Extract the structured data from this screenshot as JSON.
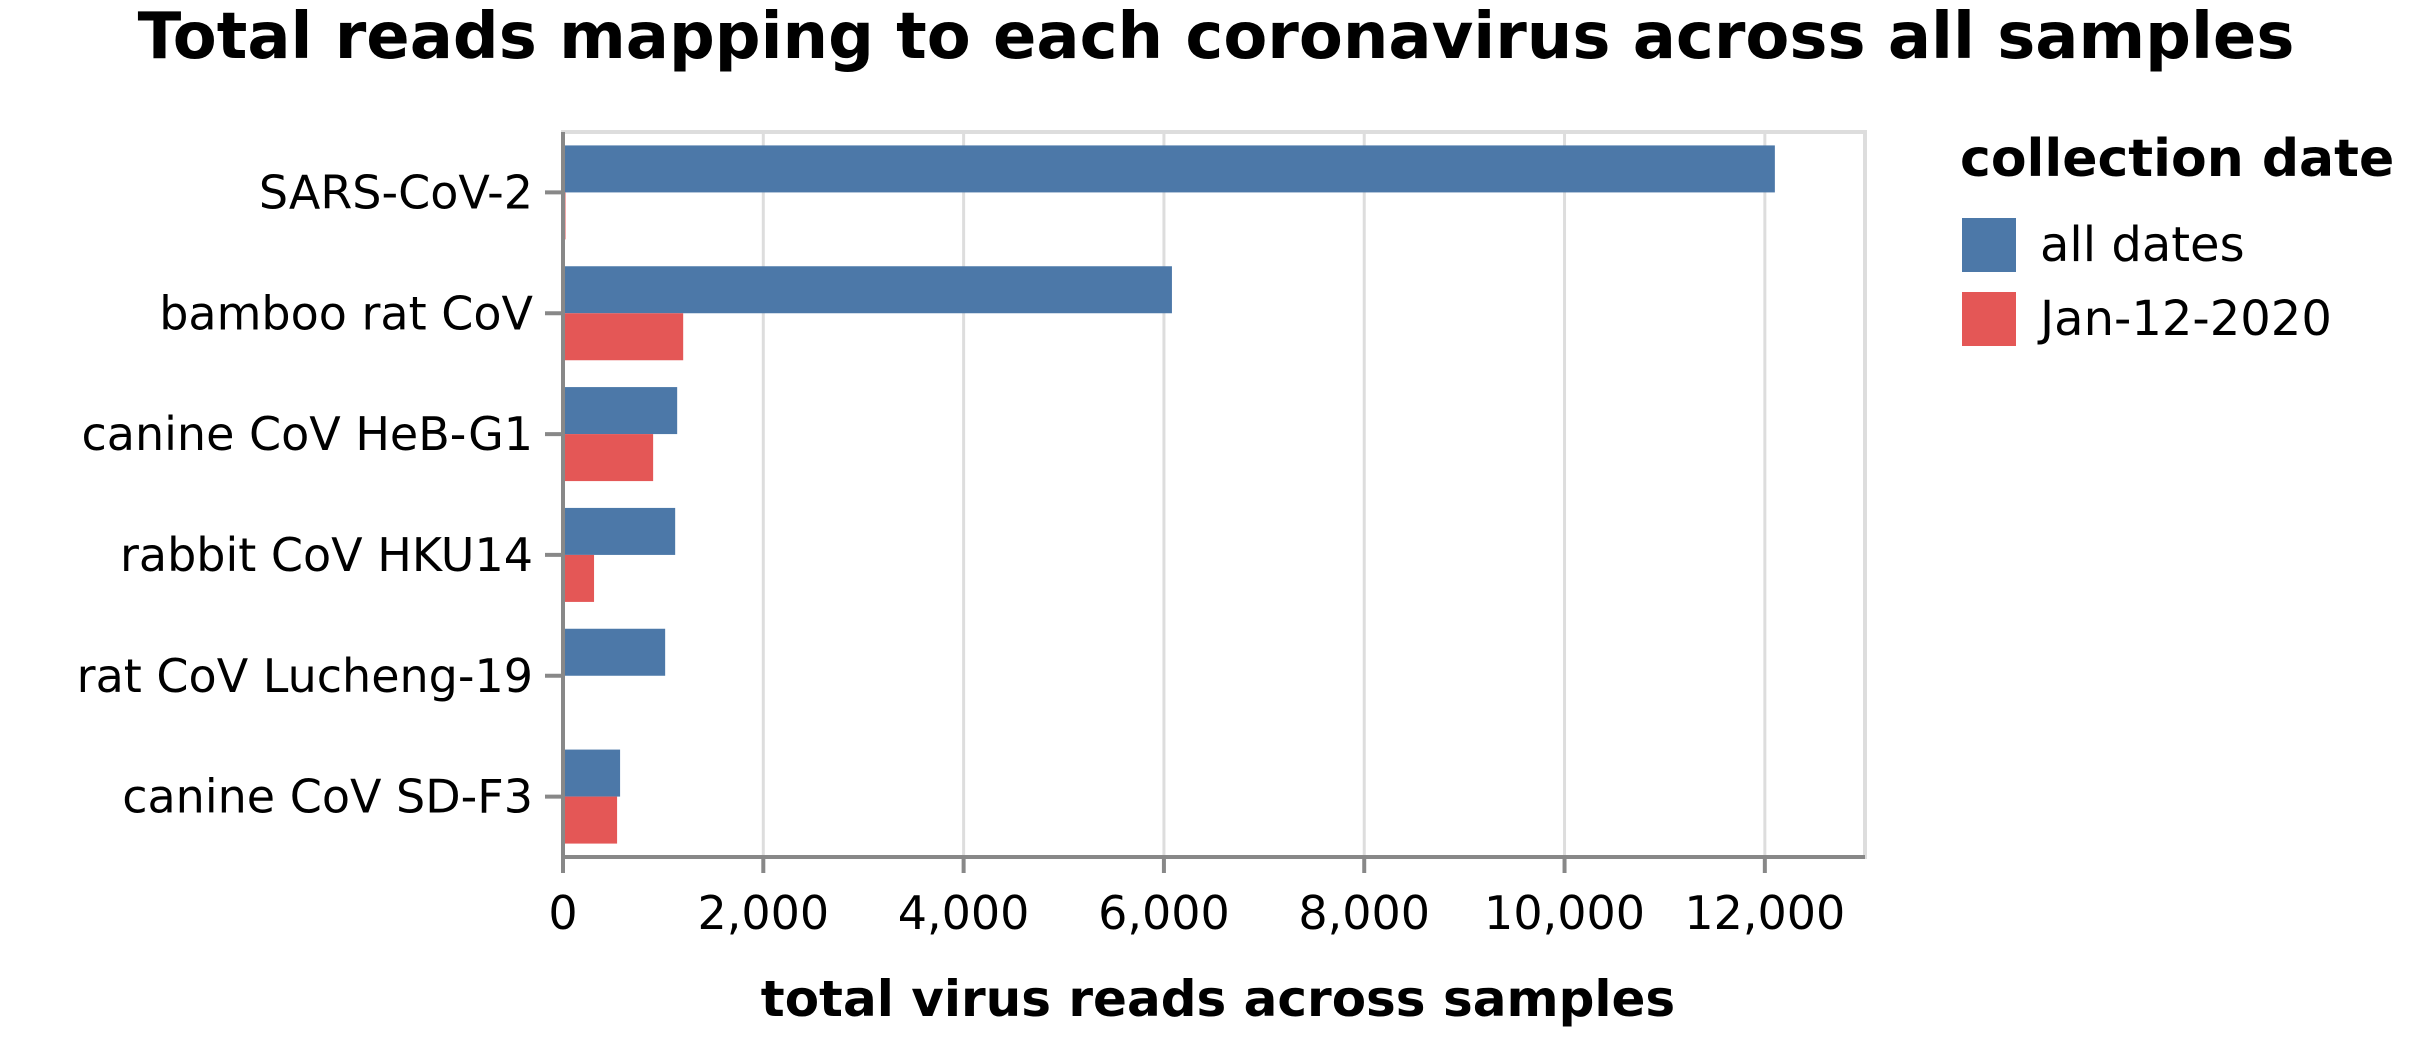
{
  "chart_data": {
    "type": "bar",
    "orientation": "horizontal",
    "title": "Total reads mapping to each coronavirus across all samples",
    "xlabel": "total virus reads across samples",
    "ylabel": "",
    "xlim": [
      0,
      13000
    ],
    "x_ticks": [
      0,
      2000,
      4000,
      6000,
      8000,
      10000,
      12000
    ],
    "x_tick_labels": [
      "0",
      "2,000",
      "4,000",
      "6,000",
      "8,000",
      "10,000",
      "12,000"
    ],
    "grid": true,
    "legend": {
      "title": "collection date",
      "placement": "right"
    },
    "categories": [
      "SARS-CoV-2",
      "bamboo rat CoV",
      "canine CoV HeB-G1",
      "rabbit CoV HKU14",
      "rat CoV Lucheng-19",
      "canine CoV SD-F3"
    ],
    "series": [
      {
        "name": "all dates",
        "color": "#4c78a8",
        "values": [
          12100,
          6080,
          1140,
          1120,
          1020,
          570
        ]
      },
      {
        "name": "Jan-12-2020",
        "color": "#e45756",
        "values": [
          25,
          1200,
          900,
          310,
          0,
          540
        ]
      }
    ]
  }
}
